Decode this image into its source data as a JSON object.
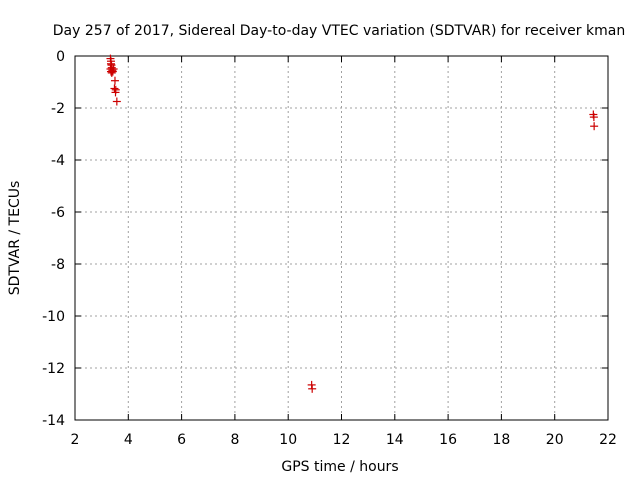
{
  "chart_data": {
    "type": "scatter",
    "title": "Day 257 of 2017, Sidereal Day-to-day VTEC variation (SDTVAR) for receiver kman",
    "xlabel": "GPS time / hours",
    "ylabel": "SDTVAR / TECUs",
    "xlim": [
      2,
      22
    ],
    "ylim": [
      -14,
      0
    ],
    "xticks": [
      2,
      4,
      6,
      8,
      10,
      12,
      14,
      16,
      18,
      20,
      22
    ],
    "yticks": [
      0,
      -2,
      -4,
      -6,
      -8,
      -10,
      -12,
      -14
    ],
    "grid": true,
    "marker": "+",
    "color": "#cc0000",
    "series": [
      {
        "name": "SDTVAR",
        "points": [
          [
            3.33,
            -0.1
          ],
          [
            3.35,
            -0.2
          ],
          [
            3.35,
            -0.3
          ],
          [
            3.37,
            -0.35
          ],
          [
            3.38,
            -0.45
          ],
          [
            3.33,
            -0.5
          ],
          [
            3.4,
            -0.55
          ],
          [
            3.35,
            -0.6
          ],
          [
            3.42,
            -0.6
          ],
          [
            3.45,
            -0.5
          ],
          [
            3.38,
            -0.65
          ],
          [
            3.5,
            -0.95
          ],
          [
            3.48,
            -1.25
          ],
          [
            3.53,
            -1.3
          ],
          [
            3.52,
            -1.4
          ],
          [
            3.57,
            -1.75
          ],
          [
            10.88,
            -12.65
          ],
          [
            10.9,
            -12.8
          ],
          [
            21.45,
            -2.25
          ],
          [
            21.47,
            -2.35
          ],
          [
            21.48,
            -2.7
          ]
        ]
      }
    ]
  }
}
